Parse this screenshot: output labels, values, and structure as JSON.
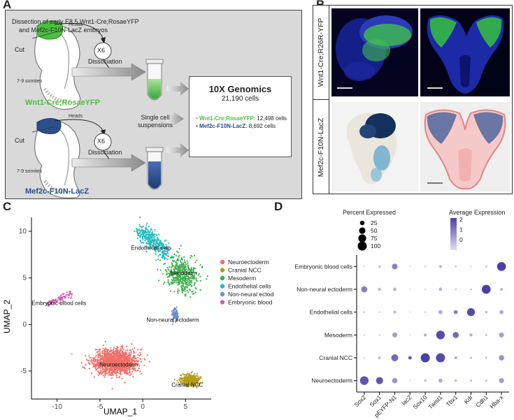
{
  "panel_labels": {
    "a": "A",
    "b": "B",
    "c": "C",
    "d": "D"
  },
  "panelA": {
    "title_line1": "Dissection of early E8.5 Wnt1-Cre;RosaeYFP",
    "title_line2": "and Mef2c-F10N-LacZ embryos",
    "cut": "Cut",
    "heads": "Heads",
    "somites": "7-9 somites",
    "x6": "X6",
    "dissociation": "Dissociation",
    "single_cell_line1": "Single cell",
    "single_cell_line2": "suspensions",
    "wnt_label": "Wnt1-Cre;RosaeYFP",
    "mef_label": "Mef2c-F10N-LacZ",
    "box_title": "10X Genomics",
    "box_cells": "21,190 cells",
    "box_wnt_name": "Wnt1-Cre;RosaeYFP",
    "box_wnt_count": ": 12,498 cells",
    "box_mef_name": "Mef2c-F10N-LacZ",
    "box_mef_count": ": 8,692 cells",
    "colors": {
      "wnt": "#4bbf3e",
      "mef": "#2a4f8f"
    }
  },
  "panelB": {
    "row1_label": "Wnt1-Cre;R26R-YFP",
    "row2_label": "Mef2c-F10N-LacZ"
  },
  "chart_data": [
    {
      "type": "scatter",
      "title": "",
      "xlabel": "UMAP_1",
      "ylabel": "UMAP_2",
      "xlim": [
        -13,
        8
      ],
      "ylim": [
        -8,
        11.5
      ],
      "xticks": [
        "-10",
        "-5",
        "0",
        "5"
      ],
      "yticks": [
        "-5",
        "0",
        "5",
        "10"
      ],
      "clusters": [
        {
          "name": "Neuroectoderm",
          "color": "#f07068",
          "center": [
            -3.2,
            -4.0
          ],
          "spread": [
            2.2,
            1.2
          ],
          "n": 1300
        },
        {
          "name": "Cranial NCC",
          "color": "#b79c1c",
          "center": [
            5.5,
            -6.0
          ],
          "spread": [
            1.0,
            0.6
          ],
          "n": 350
        },
        {
          "name": "Mesoderm",
          "color": "#3aae4a",
          "center": [
            4.6,
            5.3
          ],
          "spread": [
            1.2,
            0.9
          ],
          "n": 450
        },
        {
          "name": "Endothelial cells",
          "color": "#20bcc4",
          "center": [
            1.4,
            8.6
          ],
          "spread": [
            0.9,
            0.9
          ],
          "n": 350
        },
        {
          "name": "Non-neural ectoderm",
          "color": "#6d8fd0",
          "center": [
            3.8,
            1.0
          ],
          "spread": [
            0.35,
            0.6
          ],
          "n": 110
        },
        {
          "name": "Embryonic blood cells",
          "color": "#cf5fb2",
          "center": [
            -10.0,
            2.6
          ],
          "spread": [
            0.7,
            0.3
          ],
          "n": 90
        }
      ],
      "cluster_labels": [
        "Endothelial cells",
        "Mesoderm",
        "Embryonic blood cells",
        "Non-neural ectoderm",
        "Neuroectoderm",
        "Cranial NCC"
      ],
      "legend": "right"
    },
    {
      "type": "dotplot",
      "genes": [
        "Sox2",
        "Sox1",
        "pEYFP-N1",
        "lacZ",
        "Sox10",
        "Twist1",
        "Tbx1",
        "Kdr",
        "Cdh1",
        "Hba-x"
      ],
      "cell_types": [
        "Embryonic blood cells",
        "Non-neural ectoderm",
        "Endothelial cells",
        "Mesoderm",
        "Cranial NCC",
        "Neuroectoderm"
      ],
      "percent_expressed": [
        [
          2,
          8,
          40,
          1,
          3,
          10,
          4,
          2,
          5,
          95
        ],
        [
          45,
          12,
          15,
          1,
          3,
          15,
          4,
          4,
          95,
          10
        ],
        [
          4,
          3,
          10,
          1,
          3,
          20,
          20,
          75,
          8,
          20
        ],
        [
          3,
          3,
          30,
          1,
          10,
          90,
          45,
          10,
          5,
          30
        ],
        [
          3,
          10,
          60,
          15,
          100,
          100,
          10,
          6,
          5,
          35
        ],
        [
          90,
          60,
          35,
          1,
          8,
          20,
          8,
          6,
          6,
          30
        ]
      ],
      "avg_expression": [
        [
          -0.5,
          -0.3,
          0.8,
          -0.8,
          -0.5,
          -0.2,
          -0.4,
          -0.5,
          -0.4,
          2.0
        ],
        [
          0.8,
          -0.3,
          -0.2,
          -0.8,
          -0.5,
          -0.2,
          -0.4,
          -0.4,
          2.0,
          -0.2
        ],
        [
          -0.5,
          -0.5,
          -0.3,
          -0.8,
          -0.5,
          0.0,
          0.8,
          1.8,
          -0.3,
          0.0
        ],
        [
          -0.5,
          -0.5,
          0.2,
          -0.8,
          0.0,
          1.8,
          1.2,
          0.0,
          -0.4,
          0.2
        ],
        [
          -0.5,
          -0.3,
          1.2,
          1.5,
          2.0,
          1.8,
          0.0,
          -0.4,
          -0.4,
          0.4
        ],
        [
          1.6,
          1.6,
          0.4,
          -0.8,
          -0.4,
          0.0,
          -0.3,
          -0.4,
          -0.4,
          0.3
        ]
      ],
      "size_legend_title": "Percent Expressed",
      "size_legend": [
        25,
        50,
        75,
        100
      ],
      "color_legend_title": "Average Expression",
      "color_legend_ticks": [
        "2",
        "1",
        "0"
      ],
      "color_range": [
        -1,
        2
      ]
    }
  ]
}
